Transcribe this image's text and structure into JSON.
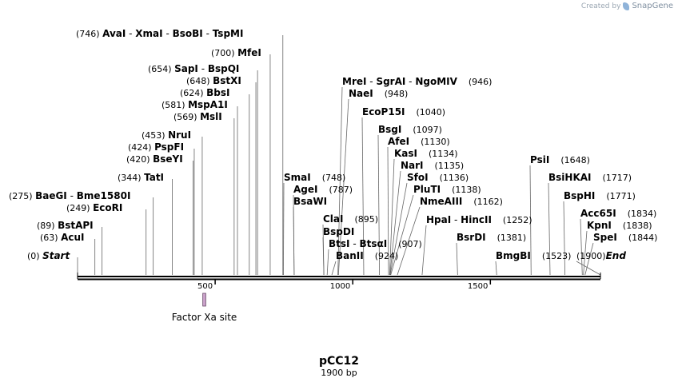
{
  "credit": {
    "prefix": "Created by",
    "brand": "SnapGene"
  },
  "plasmid": {
    "name": "pCC12",
    "length_label": "1900 bp",
    "length": 1900
  },
  "axis": {
    "ticks": [
      500,
      1000,
      1500
    ]
  },
  "features": [
    {
      "name": "Factor Xa site",
      "start": 455,
      "end": 466,
      "color": "#c9a1c9"
    }
  ],
  "sites": [
    {
      "pos": "(0)",
      "names": [
        "Start"
      ],
      "italic": true,
      "coord": 0
    },
    {
      "pos": "(63)",
      "names": [
        "AcuI"
      ],
      "coord": 63
    },
    {
      "pos": "(89)",
      "names": [
        "BstAPI"
      ],
      "coord": 89
    },
    {
      "pos": "(249)",
      "names": [
        "EcoRI"
      ],
      "coord": 249
    },
    {
      "pos": "(275)",
      "names": [
        "BaeGI",
        "Bme1580I"
      ],
      "coord": 275
    },
    {
      "pos": "(344)",
      "names": [
        "TatI"
      ],
      "coord": 344
    },
    {
      "pos": "(420)",
      "names": [
        "BseYI"
      ],
      "coord": 420
    },
    {
      "pos": "(424)",
      "names": [
        "PspFI"
      ],
      "coord": 424
    },
    {
      "pos": "(453)",
      "names": [
        "NruI"
      ],
      "coord": 453
    },
    {
      "pos": "(569)",
      "names": [
        "MslI"
      ],
      "coord": 569
    },
    {
      "pos": "(581)",
      "names": [
        "MspA1I"
      ],
      "coord": 581
    },
    {
      "pos": "(624)",
      "names": [
        "BbsI"
      ],
      "coord": 624
    },
    {
      "pos": "(648)",
      "names": [
        "BstXI"
      ],
      "coord": 648
    },
    {
      "pos": "(654)",
      "names": [
        "SapI",
        "BspQI"
      ],
      "coord": 654
    },
    {
      "pos": "(700)",
      "names": [
        "MfeI"
      ],
      "coord": 700
    },
    {
      "pos": "(746)",
      "names": [
        "AvaI",
        "XmaI",
        "BsoBI",
        "TspMI"
      ],
      "coord": 746
    },
    {
      "pos": "(748)",
      "names": [
        "SmaI"
      ],
      "coord": 748
    },
    {
      "pos": "(787)",
      "names": [
        "AgeI"
      ],
      "coord": 787
    },
    {
      "pos": "",
      "names": [
        "BsaWI"
      ],
      "coord": 787
    },
    {
      "pos": "(895)",
      "names": [
        "ClaI"
      ],
      "coord": 895
    },
    {
      "pos": "",
      "names": [
        "BspDI"
      ],
      "coord": 895
    },
    {
      "pos": "(907)",
      "names": [
        "BtsI",
        "BtsαI"
      ],
      "coord": 907
    },
    {
      "pos": "(924)",
      "names": [
        "BanII"
      ],
      "coord": 924
    },
    {
      "pos": "(946)",
      "names": [
        "MreI",
        "SgrAI",
        "NgoMIV"
      ],
      "coord": 946
    },
    {
      "pos": "(948)",
      "names": [
        "NaeI"
      ],
      "coord": 948
    },
    {
      "pos": "(1040)",
      "names": [
        "EcoP15I"
      ],
      "coord": 1040
    },
    {
      "pos": "(1097)",
      "names": [
        "BsgI"
      ],
      "coord": 1097
    },
    {
      "pos": "(1130)",
      "names": [
        "AfeI"
      ],
      "coord": 1130
    },
    {
      "pos": "(1134)",
      "names": [
        "KasI"
      ],
      "coord": 1134
    },
    {
      "pos": "(1135)",
      "names": [
        "NarI"
      ],
      "coord": 1135
    },
    {
      "pos": "(1136)",
      "names": [
        "SfoI"
      ],
      "coord": 1136
    },
    {
      "pos": "(1138)",
      "names": [
        "PluTI"
      ],
      "coord": 1138
    },
    {
      "pos": "(1162)",
      "names": [
        "NmeAIII"
      ],
      "coord": 1162
    },
    {
      "pos": "(1252)",
      "names": [
        "HpaI",
        "HincII"
      ],
      "coord": 1252
    },
    {
      "pos": "(1381)",
      "names": [
        "BsrDI"
      ],
      "coord": 1381
    },
    {
      "pos": "(1523)",
      "names": [
        "BmgBI"
      ],
      "coord": 1523
    },
    {
      "pos": "(1648)",
      "names": [
        "PsiI"
      ],
      "coord": 1648
    },
    {
      "pos": "(1717)",
      "names": [
        "BsiHKAI"
      ],
      "coord": 1717
    },
    {
      "pos": "(1771)",
      "names": [
        "BspHI"
      ],
      "coord": 1771
    },
    {
      "pos": "(1834)",
      "names": [
        "Acc65I"
      ],
      "coord": 1834
    },
    {
      "pos": "(1838)",
      "names": [
        "KpnI"
      ],
      "coord": 1838
    },
    {
      "pos": "(1844)",
      "names": [
        "SpeI"
      ],
      "coord": 1844
    },
    {
      "pos": "(1900)",
      "names": [
        "End"
      ],
      "italic": true,
      "coord": 1900
    }
  ]
}
